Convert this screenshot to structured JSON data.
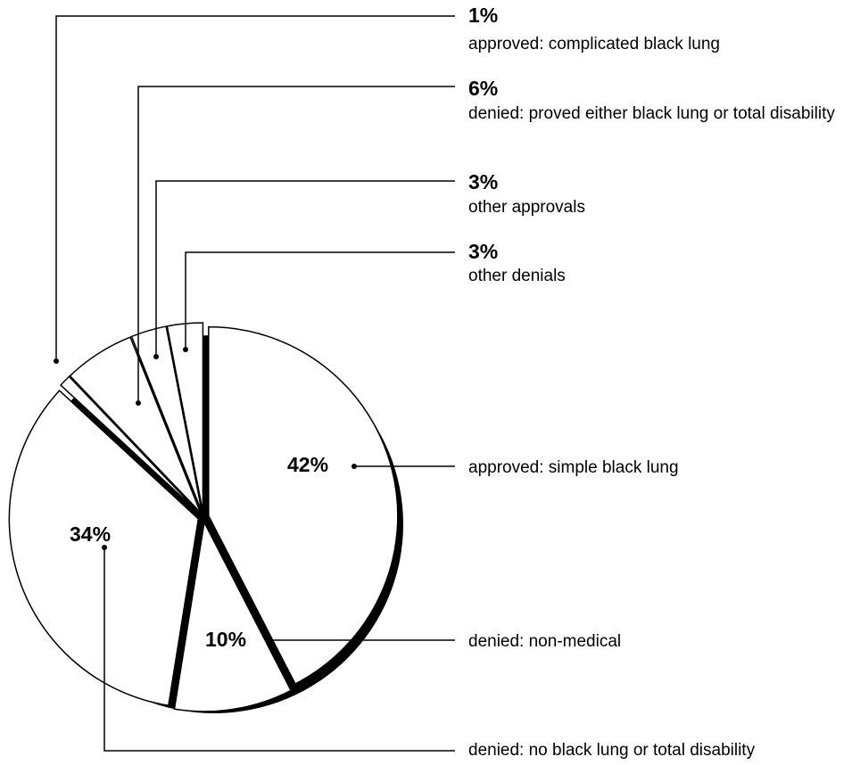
{
  "chart_data": {
    "type": "pie",
    "categories": [
      "approved: simple black lung",
      "denied: non-medical",
      "denied: no black lung or total disability",
      "approved: complicated black lung",
      "denied: proved either black lung or total disability",
      "other approvals",
      "other denials"
    ],
    "values": [
      42,
      10,
      34,
      1,
      6,
      3,
      3
    ],
    "value_labels": [
      "42%",
      "10%",
      "34%",
      "1%",
      "6%",
      "3%",
      "3%"
    ],
    "color": "#ffffff"
  }
}
